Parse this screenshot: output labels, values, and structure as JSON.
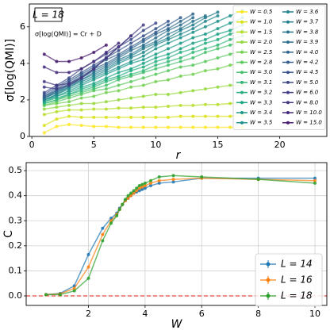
{
  "chart_data": [
    {
      "type": "line",
      "annotation_box": "L = 18",
      "annotation": "σ[log(QMI)] = Cr + D",
      "xlabel": "r",
      "ylabel": "σ[log(QMI)]",
      "xlim": [
        -0.2,
        23.8
      ],
      "ylim": [
        0,
        7.25
      ],
      "xticks": [
        0,
        5,
        10,
        15,
        20
      ],
      "yticks": [
        0,
        2,
        4,
        6
      ],
      "grid": false,
      "legend": "upper right",
      "x": [
        1,
        2,
        3,
        4,
        5,
        6,
        7,
        8,
        9,
        10,
        11,
        12,
        13,
        14,
        15,
        16,
        17
      ],
      "series": [
        {
          "name": "W = 0.5",
          "color": "#fde725",
          "values": [
            0.2,
            0.55,
            0.65,
            0.6,
            0.55,
            0.55,
            0.5,
            0.5,
            0.5,
            0.5,
            0.5,
            0.5,
            0.5,
            0.5,
            0.5,
            0.5,
            0.5
          ]
        },
        {
          "name": "W = 1.0",
          "color": "#d8e219",
          "values": [
            0.6,
            0.95,
            1.1,
            1.05,
            1.05,
            1.05,
            1.05,
            1.05,
            1.05,
            1.05,
            1.05,
            1.1,
            1.1,
            1.1,
            1.1,
            1.1,
            1.15
          ]
        },
        {
          "name": "W = 1.5",
          "color": "#b5de2b",
          "values": [
            1.2,
            1.35,
            1.45,
            1.45,
            1.5,
            1.5,
            1.55,
            1.55,
            1.6,
            1.6,
            1.65,
            1.7,
            1.7,
            1.75,
            1.75,
            1.8,
            1.85
          ]
        },
        {
          "name": "W = 2.0",
          "color": "#95d840",
          "values": [
            1.5,
            1.6,
            1.7,
            1.8,
            1.8,
            1.9,
            2.0,
            2.1,
            2.2,
            2.3,
            2.3,
            2.4,
            2.5,
            2.6,
            2.7,
            2.8,
            2.8
          ]
        },
        {
          "name": "W = 2.5",
          "color": "#75d054",
          "values": [
            1.7,
            1.8,
            1.9,
            2.1,
            2.2,
            2.4,
            2.5,
            2.7,
            2.8,
            3.0,
            3.1,
            3.3,
            3.4,
            3.6,
            3.7,
            3.9,
            4.0
          ]
        },
        {
          "name": "W = 2.8",
          "color": "#5ec962",
          "values": [
            1.7,
            1.9,
            2.1,
            2.3,
            2.5,
            2.6,
            2.8,
            3.0,
            3.2,
            3.4,
            3.6,
            3.8,
            3.9,
            4.1,
            4.3,
            4.5,
            4.7
          ]
        },
        {
          "name": "W = 3.0",
          "color": "#48c16e",
          "values": [
            1.8,
            2.0,
            2.2,
            2.4,
            2.6,
            2.8,
            3.1,
            3.3,
            3.5,
            3.7,
            3.9,
            4.1,
            4.3,
            4.6,
            4.8,
            5.0,
            5.2
          ]
        },
        {
          "name": "W = 3.1",
          "color": "#35b779",
          "values": [
            1.8,
            2.0,
            2.3,
            2.5,
            2.7,
            3.0,
            3.2,
            3.4,
            3.6,
            3.9,
            4.1,
            4.3,
            4.6,
            4.8,
            5.0,
            5.3,
            5.5
          ]
        },
        {
          "name": "W = 3.2",
          "color": "#28ae80",
          "values": [
            1.9,
            2.1,
            2.3,
            2.6,
            2.8,
            3.1,
            3.3,
            3.6,
            3.8,
            4.1,
            4.3,
            4.6,
            4.8,
            5.1,
            5.3,
            5.6,
            5.8
          ]
        },
        {
          "name": "W = 3.3",
          "color": "#20a486",
          "values": [
            1.9,
            2.2,
            2.4,
            2.7,
            2.9,
            3.2,
            3.5,
            3.7,
            4.0,
            4.3,
            4.5,
            4.8,
            5.1,
            5.3,
            5.6,
            5.8,
            6.1
          ]
        },
        {
          "name": "W = 3.4",
          "color": "#1f9a8a",
          "values": [
            2.0,
            2.2,
            2.5,
            2.8,
            3.1,
            3.4,
            3.7,
            4.0,
            4.2,
            4.5,
            4.8,
            5.1,
            5.4,
            5.6,
            5.9,
            6.2,
            6.5
          ]
        },
        {
          "name": "W = 3.5",
          "color": "#21918c",
          "values": [
            2.0,
            2.3,
            2.6,
            2.9,
            3.2,
            3.5,
            3.8,
            4.1,
            4.4,
            4.8,
            5.1,
            5.4,
            5.7,
            6.0,
            6.3,
            6.6,
            6.9
          ]
        },
        {
          "name": "W = 3.6",
          "color": "#24878e",
          "values": [
            2.0,
            2.3,
            2.7,
            3.0,
            3.3,
            3.6,
            4.0,
            4.3,
            4.6,
            5.0,
            5.3,
            5.6,
            5.9,
            6.3,
            6.6,
            null,
            null
          ]
        },
        {
          "name": "W = 3.7",
          "color": "#277f8e",
          "values": [
            2.1,
            2.4,
            2.7,
            3.1,
            3.4,
            3.7,
            4.1,
            4.4,
            4.8,
            5.1,
            5.4,
            5.8,
            6.1,
            6.5,
            6.8,
            null,
            null
          ]
        },
        {
          "name": "W = 3.8",
          "color": "#2a768e",
          "values": [
            2.1,
            2.4,
            2.8,
            3.1,
            3.5,
            3.8,
            4.2,
            4.5,
            4.9,
            5.2,
            5.6,
            5.9,
            6.3,
            6.6,
            null,
            null,
            null
          ]
        },
        {
          "name": "W = 3.9",
          "color": "#2e6e8e",
          "values": [
            2.1,
            2.5,
            2.8,
            3.2,
            3.6,
            3.9,
            4.3,
            4.7,
            5.0,
            5.4,
            5.8,
            6.1,
            6.5,
            null,
            null,
            null,
            null
          ]
        },
        {
          "name": "W = 4.0",
          "color": "#31668e",
          "values": [
            2.2,
            2.5,
            2.9,
            3.3,
            3.7,
            4.0,
            4.4,
            4.8,
            5.2,
            5.6,
            5.9,
            6.3,
            6.7,
            null,
            null,
            null,
            null
          ]
        },
        {
          "name": "W = 4.2",
          "color": "#355e8d",
          "values": [
            2.2,
            2.6,
            3.0,
            3.4,
            3.8,
            4.2,
            4.5,
            4.9,
            5.3,
            5.7,
            6.1,
            6.5,
            null,
            null,
            null,
            null,
            null
          ]
        },
        {
          "name": "W = 4.5",
          "color": "#39558c",
          "values": [
            2.3,
            2.7,
            3.1,
            3.5,
            3.9,
            4.3,
            4.7,
            5.1,
            5.5,
            5.9,
            6.3,
            null,
            null,
            null,
            null,
            null,
            null
          ]
        },
        {
          "name": "W = 5.0",
          "color": "#3e4c8a",
          "values": [
            2.4,
            2.8,
            3.2,
            3.7,
            4.1,
            4.5,
            4.9,
            5.3,
            5.8,
            6.2,
            null,
            null,
            null,
            null,
            null,
            null,
            null
          ]
        },
        {
          "name": "W = 6.0",
          "color": "#424086",
          "values": [
            2.7,
            2.6,
            2.8,
            3.2,
            3.7,
            4.3,
            4.9,
            5.5,
            6.1,
            null,
            null,
            null,
            null,
            null,
            null,
            null,
            null
          ]
        },
        {
          "name": "W = 8.0",
          "color": "#453781",
          "values": [
            3.0,
            2.8,
            2.9,
            3.2,
            3.7,
            4.3,
            4.9,
            5.5,
            null,
            null,
            null,
            null,
            null,
            null,
            null,
            null,
            null
          ]
        },
        {
          "name": "W = 10.0",
          "color": "#472d7b",
          "values": [
            3.8,
            3.5,
            3.5,
            3.7,
            4.1,
            4.6,
            5.1,
            null,
            null,
            null,
            null,
            null,
            null,
            null,
            null,
            null,
            null
          ]
        },
        {
          "name": "W = 15.0",
          "color": "#481a6c",
          "values": [
            4.5,
            4.1,
            4.1,
            4.3,
            4.6,
            5.0,
            null,
            null,
            null,
            null,
            null,
            null,
            null,
            null,
            null,
            null,
            null
          ]
        }
      ]
    },
    {
      "type": "line",
      "xlabel": "W",
      "ylabel": "C",
      "xlim": [
        -0.2,
        10.42
      ],
      "ylim": [
        -0.038,
        0.532
      ],
      "xticks": [
        2,
        4,
        6,
        8,
        10
      ],
      "yticks": [
        {
          "value": 0,
          "label": "0.0"
        },
        0.1,
        0.2,
        0.3,
        0.4,
        0.5
      ],
      "grid": true,
      "legend": "center right",
      "hline": 0,
      "x": [
        0.5,
        1,
        1.5,
        2,
        2.5,
        2.8,
        3,
        3.1,
        3.2,
        3.3,
        3.4,
        3.5,
        3.6,
        3.7,
        3.8,
        3.9,
        4,
        4.2,
        4.5,
        5,
        6,
        8,
        10
      ],
      "series": [
        {
          "name": "L = 14",
          "color": "#1f77b4",
          "values": [
            0.005,
            0.01,
            0.04,
            0.165,
            0.27,
            0.31,
            0.33,
            0.35,
            0.365,
            0.38,
            0.39,
            0.4,
            0.41,
            0.415,
            0.42,
            0.425,
            0.43,
            0.44,
            0.45,
            0.455,
            0.47,
            0.47,
            0.47
          ]
        },
        {
          "name": "L = 16",
          "color": "#ff7f0e",
          "values": [
            0.005,
            0.008,
            0.03,
            0.115,
            0.245,
            0.3,
            0.325,
            0.345,
            0.365,
            0.38,
            0.39,
            0.4,
            0.41,
            0.42,
            0.43,
            0.435,
            0.44,
            0.45,
            0.46,
            0.465,
            0.47,
            0.465,
            0.46
          ]
        },
        {
          "name": "L = 18",
          "color": "#2ca02c",
          "values": [
            0.005,
            0.005,
            0.02,
            0.07,
            0.22,
            0.29,
            0.32,
            0.345,
            0.365,
            0.385,
            0.4,
            0.41,
            0.42,
            0.43,
            0.44,
            0.445,
            0.45,
            0.46,
            0.475,
            0.48,
            0.475,
            0.465,
            0.45
          ]
        }
      ]
    }
  ]
}
